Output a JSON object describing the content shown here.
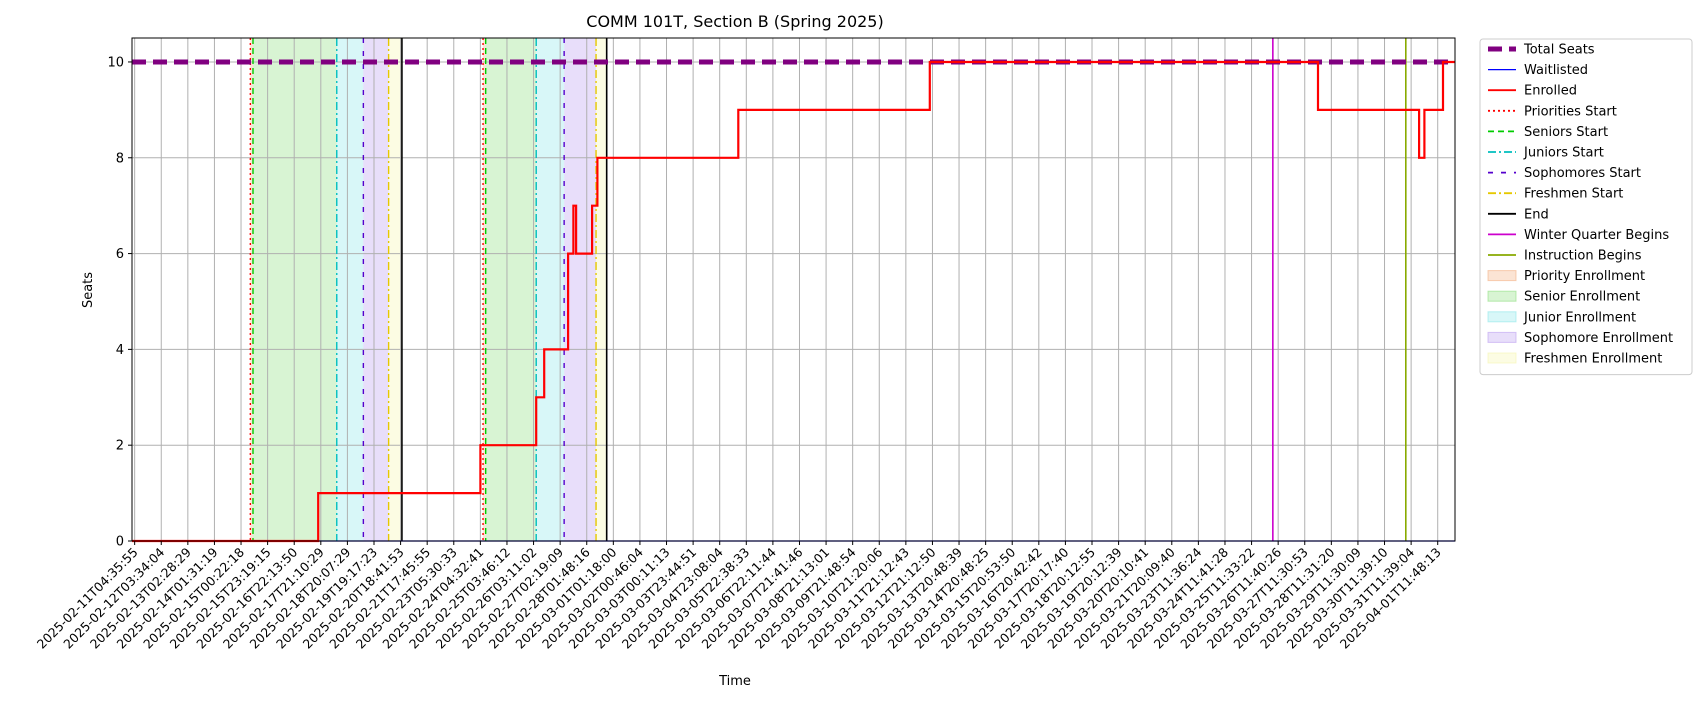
{
  "chart_data": {
    "type": "line",
    "title": "COMM 101T, Section B (Spring 2025)",
    "xlabel": "Time",
    "ylabel": "Seats",
    "ylim": [
      0,
      10.5
    ],
    "yticks": [
      0,
      2,
      4,
      6,
      8,
      10
    ],
    "grid": true,
    "legend_placement": "outside-right",
    "x_tick_labels": [
      "2025-02-11T04:35:55",
      "2025-02-12T03:34:04",
      "2025-02-13T02:28:29",
      "2025-02-14T01:31:19",
      "2025-02-15T00:22:18",
      "2025-02-15T23:19:15",
      "2025-02-16T22:13:50",
      "2025-02-17T21:10:29",
      "2025-02-18T20:07:29",
      "2025-02-19T19:17:23",
      "2025-02-20T18:41:53",
      "2025-02-21T17:45:55",
      "2025-02-23T05:30:33",
      "2025-02-24T04:32:41",
      "2025-02-25T03:46:12",
      "2025-02-26T03:11:02",
      "2025-02-27T02:19:09",
      "2025-02-28T01:48:16",
      "2025-03-01T01:18:00",
      "2025-03-02T00:46:04",
      "2025-03-03T00:11:13",
      "2025-03-03T23:44:51",
      "2025-03-04T23:08:04",
      "2025-03-05T22:38:33",
      "2025-03-06T22:11:44",
      "2025-03-07T21:41:46",
      "2025-03-08T21:13:01",
      "2025-03-09T21:48:54",
      "2025-03-10T21:20:06",
      "2025-03-11T21:12:43",
      "2025-03-12T21:12:50",
      "2025-03-13T20:48:39",
      "2025-03-14T20:48:25",
      "2025-03-15T20:53:50",
      "2025-03-16T20:42:42",
      "2025-03-17T20:17:40",
      "2025-03-18T20:12:55",
      "2025-03-19T20:12:39",
      "2025-03-20T20:10:41",
      "2025-03-21T20:09:40",
      "2025-03-23T11:36:24",
      "2025-03-24T11:41:28",
      "2025-03-25T11:33:22",
      "2025-03-26T11:40:26",
      "2025-03-27T11:30:53",
      "2025-03-28T11:31:20",
      "2025-03-29T11:30:09",
      "2025-03-30T11:39:10",
      "2025-03-31T11:39:04",
      "2025-04-01T11:48:13"
    ],
    "x_range_ticks": [
      -0.1,
      49.65
    ],
    "series": [
      {
        "name": "Total Seats",
        "color": "#800080",
        "style": "dashed-thick",
        "points": [
          [
            -0.1,
            10
          ],
          [
            49.65,
            10
          ]
        ]
      },
      {
        "name": "Waitlisted",
        "color": "#0000ff",
        "style": "solid-thin",
        "points": [
          [
            -0.1,
            0
          ],
          [
            49.65,
            0
          ]
        ]
      },
      {
        "name": "Enrolled",
        "color": "#ff0000",
        "style": "solid",
        "points": [
          [
            -0.1,
            0
          ],
          [
            6.9,
            0
          ],
          [
            6.9,
            1
          ],
          [
            13.0,
            1
          ],
          [
            13.0,
            2
          ],
          [
            15.1,
            2
          ],
          [
            15.1,
            3
          ],
          [
            15.4,
            3
          ],
          [
            15.4,
            4
          ],
          [
            16.3,
            4
          ],
          [
            16.3,
            6
          ],
          [
            16.5,
            6
          ],
          [
            16.5,
            7
          ],
          [
            16.6,
            7
          ],
          [
            16.6,
            6
          ],
          [
            17.2,
            6
          ],
          [
            17.2,
            7
          ],
          [
            17.4,
            7
          ],
          [
            17.4,
            8
          ],
          [
            22.7,
            8
          ],
          [
            22.7,
            9
          ],
          [
            29.9,
            9
          ],
          [
            29.9,
            10
          ],
          [
            44.5,
            10
          ],
          [
            44.5,
            9
          ],
          [
            48.3,
            9
          ],
          [
            48.3,
            8
          ],
          [
            48.5,
            8
          ],
          [
            48.5,
            9
          ],
          [
            49.2,
            9
          ],
          [
            49.2,
            10
          ],
          [
            49.65,
            10
          ]
        ]
      }
    ],
    "events": [
      {
        "name": "Priorities Start",
        "color": "#ff0000",
        "style": "dotted",
        "x": [
          4.35,
          13.1
        ]
      },
      {
        "name": "Seniors Start",
        "color": "#00cc00",
        "style": "dashed",
        "x": [
          4.45,
          13.2
        ]
      },
      {
        "name": "Juniors Start",
        "color": "#00bfbf",
        "style": "dashdot",
        "x": [
          7.6,
          15.1
        ]
      },
      {
        "name": "Sophomores Start",
        "color": "#5500cc",
        "style": "loosedash",
        "x": [
          8.6,
          16.15
        ]
      },
      {
        "name": "Freshmen Start",
        "color": "#e6c800",
        "style": "dashdot",
        "x": [
          9.55,
          17.35
        ]
      },
      {
        "name": "End",
        "color": "#000000",
        "style": "solid",
        "x": [
          10.05,
          17.75
        ]
      },
      {
        "name": "Winter Quarter Begins",
        "color": "#cc00cc",
        "style": "solid",
        "x": [
          42.8
        ]
      },
      {
        "name": "Instruction Begins",
        "color": "#88aa00",
        "style": "solid",
        "x": [
          47.8
        ]
      }
    ],
    "periods": [
      {
        "name": "Priority Enrollment",
        "color": "#f4b183",
        "ranges": [
          [
            4.35,
            4.45
          ],
          [
            13.1,
            13.2
          ]
        ]
      },
      {
        "name": "Senior Enrollment",
        "color": "#90e080",
        "ranges": [
          [
            4.45,
            7.6
          ],
          [
            13.2,
            15.1
          ]
        ]
      },
      {
        "name": "Junior Enrollment",
        "color": "#90e8ea",
        "ranges": [
          [
            7.6,
            8.6
          ],
          [
            15.1,
            16.15
          ]
        ]
      },
      {
        "name": "Sophomore Enrollment",
        "color": "#bca0f0",
        "ranges": [
          [
            8.6,
            9.55
          ],
          [
            16.15,
            17.35
          ]
        ]
      },
      {
        "name": "Freshmen Enrollment",
        "color": "#f5f5b0",
        "ranges": [
          [
            9.55,
            10.05
          ],
          [
            17.35,
            17.75
          ]
        ]
      }
    ],
    "legend": [
      "Total Seats",
      "Waitlisted",
      "Enrolled",
      "Priorities Start",
      "Seniors Start",
      "Juniors Start",
      "Sophomores Start",
      "Freshmen Start",
      "End",
      "Winter Quarter Begins",
      "Instruction Begins",
      "Priority Enrollment",
      "Senior Enrollment",
      "Junior Enrollment",
      "Sophomore Enrollment",
      "Freshmen Enrollment"
    ]
  }
}
